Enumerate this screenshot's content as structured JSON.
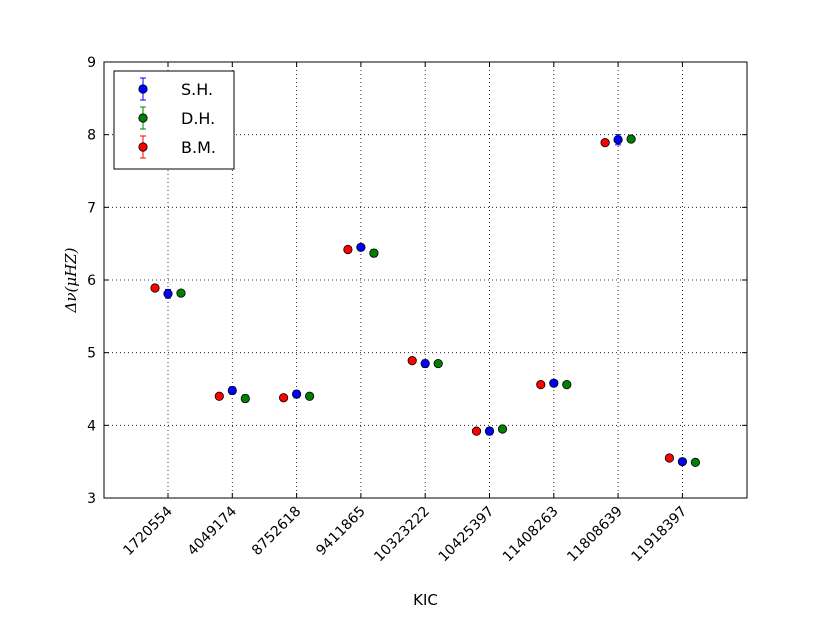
{
  "chart_data": {
    "type": "scatter",
    "xlabel": "KIC",
    "ylabel": "Δν(μHZ)",
    "ylim": [
      3,
      9
    ],
    "yticks": [
      "3",
      "4",
      "5",
      "6",
      "7",
      "8",
      "9"
    ],
    "grid": true,
    "legend_placement": "top-left",
    "categories": [
      "1720554",
      "4049174",
      "8752618",
      "9411865",
      "10323222",
      "10425397",
      "11408263",
      "11808639",
      "11918397"
    ],
    "series": [
      {
        "name": "S.H.",
        "color": "#0000ff",
        "values": [
          5.81,
          4.48,
          4.43,
          6.45,
          4.85,
          3.92,
          4.58,
          7.93,
          3.5
        ],
        "errors": [
          0.06,
          0.05,
          0.05,
          0.04,
          0.05,
          0.05,
          0.04,
          0.07,
          0.04
        ]
      },
      {
        "name": "D.H.",
        "color": "#008000",
        "values": [
          5.82,
          4.37,
          4.4,
          6.37,
          4.85,
          3.95,
          4.56,
          7.94,
          3.49
        ],
        "errors": [
          0.03,
          0.05,
          0.03,
          0.05,
          0.03,
          0.03,
          0.03,
          0.04,
          0.03
        ]
      },
      {
        "name": "B.M.",
        "color": "#ff0000",
        "values": [
          5.89,
          4.4,
          4.38,
          6.42,
          4.89,
          3.92,
          4.56,
          7.89,
          3.55
        ],
        "errors": [
          0.03,
          0.03,
          0.03,
          0.03,
          0.03,
          0.03,
          0.03,
          0.04,
          0.03
        ]
      }
    ]
  }
}
